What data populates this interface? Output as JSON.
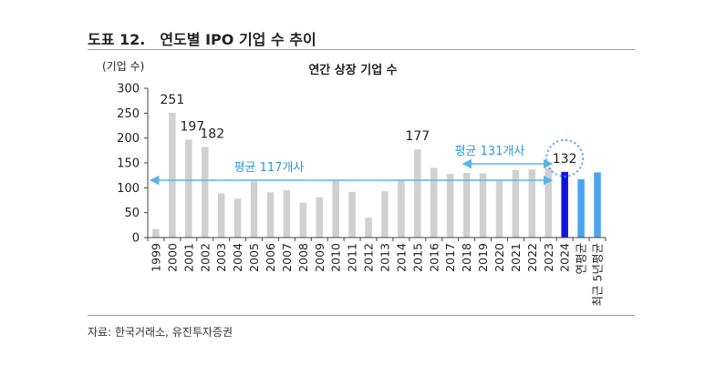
{
  "figure": {
    "number": "도표 12.",
    "title": "연도별 IPO 기업 수 추이",
    "source": "자료: 한국거래소, 유진투자증권"
  },
  "chart_data": {
    "type": "bar",
    "title": "연간 상장 기업 수",
    "ylabel": "(기업 수)",
    "xlabel": "",
    "ylim": [
      0,
      300
    ],
    "yticks": [
      0,
      50,
      100,
      150,
      200,
      250,
      300
    ],
    "grid": false,
    "categories": [
      "1999",
      "2000",
      "2001",
      "2002",
      "2003",
      "2004",
      "2005",
      "2006",
      "2007",
      "2008",
      "2009",
      "2010",
      "2011",
      "2012",
      "2013",
      "2014",
      "2015",
      "2016",
      "2017",
      "2018",
      "2019",
      "2020",
      "2021",
      "2022",
      "2023",
      "2024",
      "연평균",
      "최근 5년평균"
    ],
    "values": [
      17,
      251,
      197,
      182,
      89,
      78,
      113,
      91,
      95,
      70,
      81,
      115,
      92,
      40,
      93,
      116,
      177,
      140,
      128,
      130,
      129,
      115,
      136,
      137,
      140,
      132,
      117,
      131
    ],
    "bar_kinds": [
      "normal",
      "normal",
      "normal",
      "normal",
      "normal",
      "normal",
      "normal",
      "normal",
      "normal",
      "normal",
      "normal",
      "normal",
      "normal",
      "normal",
      "normal",
      "normal",
      "normal",
      "normal",
      "normal",
      "normal",
      "normal",
      "normal",
      "normal",
      "normal",
      "normal",
      "highlight",
      "average",
      "average"
    ],
    "data_labels": [
      {
        "index": 1,
        "text": "251"
      },
      {
        "index": 2,
        "text": "197"
      },
      {
        "index": 3,
        "text": "182"
      },
      {
        "index": 16,
        "text": "177"
      },
      {
        "index": 25,
        "text": "132"
      }
    ],
    "annotations": [
      {
        "text": "평균 117개사",
        "value": 117,
        "from_index": 0,
        "to_index": 24
      },
      {
        "text": "평균 131개사",
        "value": 131,
        "from_index": 19,
        "to_index": 24
      }
    ],
    "colors": {
      "normal": "#d0d0d0",
      "highlight": "#1212e0",
      "average": "#4ba3f2",
      "arrow": "#5ab4e8",
      "annotation_text": "#2d9bdc",
      "circle": "#4ba3f2"
    }
  }
}
